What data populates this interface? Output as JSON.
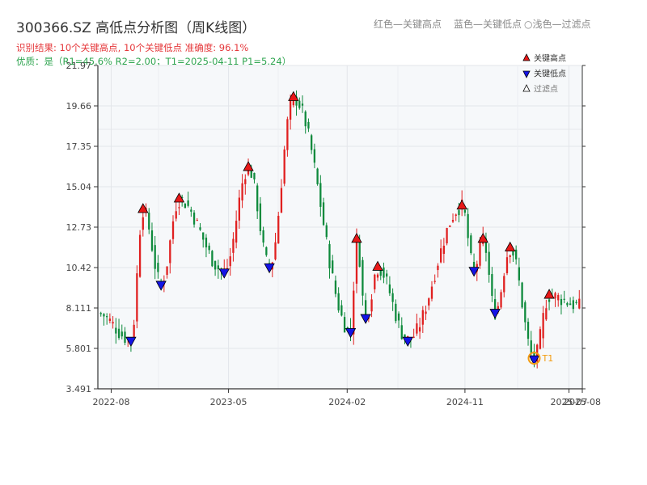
{
  "header": {
    "title": "300366.SZ 高低点分析图（周K线图）",
    "result": "识别结果: 10个关键高点, 10个关键低点   准确度: 96.1%",
    "quality": "优质：是（R1=45.6%  R2=2.00；T1=2025-04-11 P1=5.24）",
    "legend_top": {
      "red": "红色—关键高点",
      "blue": "蓝色—关键低点",
      "light": "○浅色—过滤点"
    }
  },
  "chart_data": {
    "type": "candlestick",
    "title": "300366.SZ 高低点分析图（周K线图）",
    "ylim": [
      3.491,
      21.97
    ],
    "y_ticks": [
      "3.491",
      "5.801",
      "8.111",
      "10.42",
      "12.73",
      "15.04",
      "17.35",
      "19.66",
      "21.97"
    ],
    "x_range": [
      "2022-07-01",
      "2025-08-01"
    ],
    "x_ticks": [
      {
        "date": "2022-08-01",
        "label": "2022-08"
      },
      {
        "date": "2023-05-01",
        "label": "2023-05"
      },
      {
        "date": "2024-02-01",
        "label": "2024-02"
      },
      {
        "date": "2024-11-01",
        "label": "2024-11"
      },
      {
        "date": "2025-07-01",
        "label": "2025-07"
      },
      {
        "date": "2025-08-01",
        "label": "2025-08"
      }
    ],
    "colors": {
      "up": "#e02020",
      "down": "#0e8a3c",
      "high": "#e81818",
      "low": "#1414e6",
      "t1": "#f39c12"
    },
    "legend": {
      "position": "top-right",
      "items": [
        {
          "label": "关键高点",
          "marker": "triangle-up",
          "color": "#e81818"
        },
        {
          "label": "关键低点",
          "marker": "triangle-down",
          "color": "#1414e6"
        },
        {
          "label": "过滤点",
          "marker": "triangle-up-outline",
          "color": "#ffffff"
        }
      ]
    },
    "key_highs": [
      {
        "date": "2022-10-14",
        "price": 13.7
      },
      {
        "date": "2023-01-06",
        "price": 14.3
      },
      {
        "date": "2023-06-16",
        "price": 16.1
      },
      {
        "date": "2023-09-29",
        "price": 20.1
      },
      {
        "date": "2024-02-23",
        "price": 12.0
      },
      {
        "date": "2024-04-12",
        "price": 10.4
      },
      {
        "date": "2024-10-25",
        "price": 13.9
      },
      {
        "date": "2024-12-13",
        "price": 12.0
      },
      {
        "date": "2025-02-14",
        "price": 11.5
      },
      {
        "date": "2025-05-16",
        "price": 8.8
      }
    ],
    "key_lows": [
      {
        "date": "2022-09-16",
        "price": 6.3
      },
      {
        "date": "2022-11-25",
        "price": 9.5
      },
      {
        "date": "2023-04-21",
        "price": 10.2
      },
      {
        "date": "2023-08-04",
        "price": 10.5
      },
      {
        "date": "2024-02-09",
        "price": 6.8
      },
      {
        "date": "2024-03-15",
        "price": 7.6
      },
      {
        "date": "2024-06-21",
        "price": 6.3
      },
      {
        "date": "2024-11-22",
        "price": 10.3
      },
      {
        "date": "2025-01-10",
        "price": 7.9
      },
      {
        "date": "2025-04-11",
        "price": 5.24
      }
    ],
    "t1": {
      "label": "T1",
      "date": "2025-04-11",
      "price": 5.24
    }
  }
}
